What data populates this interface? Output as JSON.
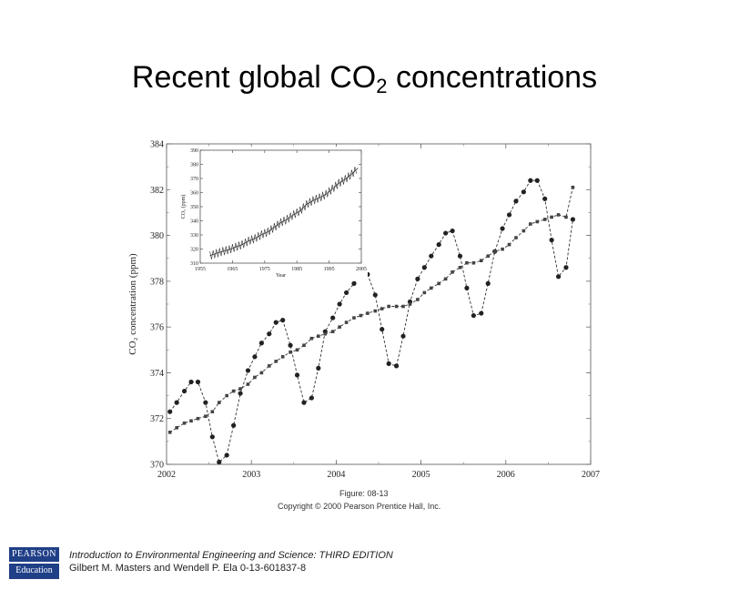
{
  "slide": {
    "title_main": "Recent global CO",
    "title_sub": "2",
    "title_tail": " concentrations"
  },
  "figure": {
    "figure_label": "Figure: 08-13",
    "copyright": "Copyright © 2000 Pearson Prentice Hall, Inc."
  },
  "footer": {
    "book_title": "Introduction to Environmental Engineering and Science: THIRD EDITION",
    "authors": "Gilbert M. Masters and Wendell P. Ela 0-13-601837-8",
    "logo_top": "PEARSON",
    "logo_bottom": "Education"
  },
  "chart_data": [
    {
      "type": "line",
      "xlabel": "",
      "ylabel": "CO₂ concentration (ppm)",
      "xlim": [
        2002,
        2007
      ],
      "ylim": [
        370,
        384
      ],
      "x_ticks": [
        2002,
        2003,
        2004,
        2005,
        2006,
        2007
      ],
      "y_ticks": [
        370,
        372,
        374,
        376,
        378,
        380,
        382,
        384
      ],
      "grid": false,
      "series": [
        {
          "name": "",
          "marker": "circle",
          "x": [
            2002.04,
            2002.12,
            2002.21,
            2002.29,
            2002.37,
            2002.46,
            2002.54,
            2002.62,
            2002.71,
            2002.79,
            2002.87,
            2002.96,
            2003.04,
            2003.12,
            2003.21,
            2003.29,
            2003.37,
            2003.46,
            2003.54,
            2003.62,
            2003.71,
            2003.79,
            2003.87,
            2003.96,
            2004.04,
            2004.12,
            2004.21,
            2004.29,
            2004.37,
            2004.46,
            2004.54,
            2004.62,
            2004.71,
            2004.79,
            2004.87,
            2004.96,
            2005.04,
            2005.12,
            2005.21,
            2005.29,
            2005.37,
            2005.46,
            2005.54,
            2005.62,
            2005.71,
            2005.79,
            2005.87,
            2005.96,
            2006.04,
            2006.12,
            2006.21,
            2006.29,
            2006.37,
            2006.46,
            2006.54,
            2006.62,
            2006.71,
            2006.79
          ],
          "y": [
            372.3,
            372.7,
            373.2,
            373.6,
            373.6,
            372.7,
            371.2,
            370.1,
            370.4,
            371.7,
            373.1,
            374.1,
            374.7,
            375.3,
            375.7,
            376.2,
            376.3,
            375.2,
            373.9,
            372.7,
            372.9,
            374.2,
            375.8,
            376.4,
            377.0,
            377.5,
            377.9,
            378.3,
            378.3,
            377.4,
            375.9,
            374.4,
            374.3,
            375.6,
            377.1,
            378.1,
            378.6,
            379.1,
            379.6,
            380.1,
            380.2,
            379.1,
            377.7,
            376.5,
            376.6,
            377.9,
            379.3,
            380.3,
            380.9,
            381.5,
            381.9,
            382.4,
            382.4,
            381.6,
            379.8,
            378.2,
            378.6,
            380.7
          ]
        },
        {
          "name": "",
          "marker": "square",
          "x": [
            2002.04,
            2002.12,
            2002.21,
            2002.29,
            2002.37,
            2002.46,
            2002.54,
            2002.62,
            2002.71,
            2002.79,
            2002.87,
            2002.96,
            2003.04,
            2003.12,
            2003.21,
            2003.29,
            2003.37,
            2003.46,
            2003.54,
            2003.62,
            2003.71,
            2003.79,
            2003.87,
            2003.96,
            2004.04,
            2004.12,
            2004.21,
            2004.29,
            2004.37,
            2004.46,
            2004.54,
            2004.62,
            2004.71,
            2004.79,
            2004.87,
            2004.96,
            2005.04,
            2005.12,
            2005.21,
            2005.29,
            2005.37,
            2005.46,
            2005.54,
            2005.62,
            2005.71,
            2005.79,
            2005.87,
            2005.96,
            2006.04,
            2006.12,
            2006.21,
            2006.29,
            2006.37,
            2006.46,
            2006.54,
            2006.62,
            2006.71,
            2006.79
          ],
          "y": [
            371.4,
            371.6,
            371.8,
            371.9,
            372.0,
            372.1,
            372.3,
            372.7,
            373.0,
            373.2,
            373.3,
            373.5,
            373.8,
            374.0,
            374.3,
            374.5,
            374.7,
            374.9,
            375.0,
            375.2,
            375.5,
            375.6,
            375.7,
            375.8,
            376.0,
            376.2,
            376.4,
            376.5,
            376.6,
            376.7,
            376.8,
            376.9,
            376.9,
            376.9,
            377.0,
            377.2,
            377.5,
            377.7,
            377.9,
            378.1,
            378.4,
            378.6,
            378.8,
            378.8,
            378.9,
            379.1,
            379.3,
            379.4,
            379.6,
            379.9,
            380.2,
            380.5,
            380.6,
            380.7,
            380.8,
            380.9,
            380.8,
            382.1
          ]
        }
      ]
    },
    {
      "type": "line",
      "xlabel": "Year",
      "ylabel": "CO₂ (ppm)",
      "xlim": [
        1955,
        2005
      ],
      "ylim": [
        310,
        390
      ],
      "x_ticks": [
        1955,
        1965,
        1975,
        1985,
        1995,
        2005
      ],
      "y_ticks": [
        310,
        320,
        330,
        340,
        350,
        360,
        370,
        380,
        390
      ],
      "grid": false,
      "series": [
        {
          "name": "",
          "x": [
            1958,
            1960,
            1962,
            1964,
            1966,
            1968,
            1970,
            1972,
            1974,
            1976,
            1978,
            1980,
            1982,
            1984,
            1986,
            1988,
            1990,
            1992,
            1994,
            1996,
            1998,
            2000,
            2002,
            2004
          ],
          "y": [
            315.3,
            316.9,
            318.4,
            319.6,
            321.4,
            323.1,
            325.7,
            327.5,
            330.2,
            332.1,
            335.4,
            338.7,
            341.1,
            344.4,
            347.0,
            351.6,
            354.4,
            356.3,
            358.8,
            362.6,
            366.6,
            369.4,
            373.1,
            377.4
          ]
        }
      ]
    }
  ]
}
